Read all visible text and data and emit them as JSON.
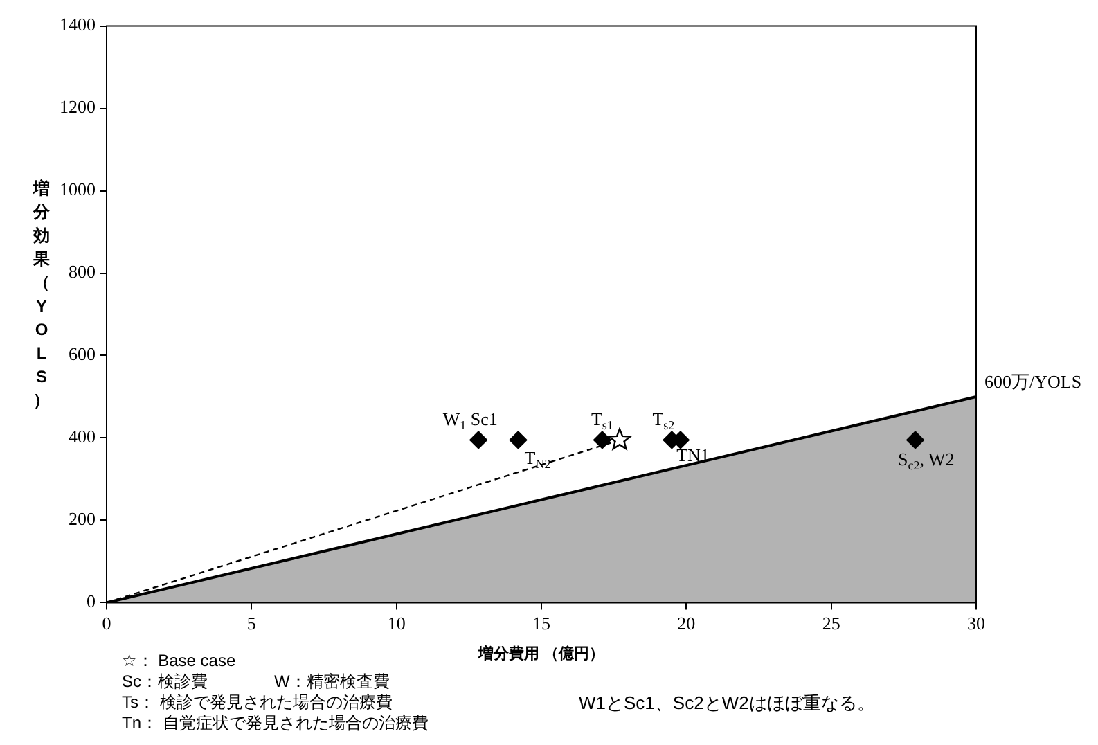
{
  "chart_data": {
    "type": "scatter",
    "xlabel": "増分費用 （億円）",
    "ylabel": "増分効果（YOLS）",
    "xlim": [
      0,
      30
    ],
    "xticks": [
      0,
      5,
      10,
      15,
      20,
      25,
      30
    ],
    "ylim": [
      0,
      1400
    ],
    "yticks": [
      0,
      200,
      400,
      600,
      800,
      1000,
      1200,
      1400
    ],
    "grid": false,
    "series": [
      {
        "type": "area",
        "color": "#b3b3b3",
        "x": [
          0,
          30
        ],
        "values": [
          0,
          500
        ]
      },
      {
        "type": "line",
        "color": "#000000",
        "line_style": "dashed",
        "marker": "none",
        "x": [
          0,
          17.7
        ],
        "values": [
          0,
          395
        ]
      },
      {
        "type": "scatter",
        "color": "#000000",
        "marker": "diamond",
        "x": [
          12.83,
          14.2,
          17.1,
          19.5,
          19.8,
          27.9
        ],
        "values": [
          395,
          395,
          395,
          395,
          395,
          395
        ]
      },
      {
        "type": "scatter",
        "color": "#000000",
        "marker": "star",
        "x": [
          17.7
        ],
        "values": [
          395
        ]
      }
    ],
    "annotations": [
      {
        "text": "W$_{1}$ Sc1",
        "x": 12.83,
        "y": 395
      },
      {
        "text": "T$_{N2}$",
        "x": 14.2,
        "y": 395
      },
      {
        "text": "T$_{s1}$",
        "x": 17.1,
        "y": 395
      },
      {
        "text": "T$_{s2}$",
        "x": 19.5,
        "y": 395
      },
      {
        "text": "TN1",
        "x": 19.8,
        "y": 395
      },
      {
        "text": "S$_{c2}$, W2",
        "x": 27.9,
        "y": 395
      },
      {
        "text": "600万/YOLS",
        "x": 30,
        "y": 500
      },
      "☆： Base case",
      "Sc：検診費　　　　W：精密検査費",
      "Ts： 検診で発見された場合の治療費",
      "Tn： 自覚症状で発見された場合の治療費",
      "W1とSc1、Sc2とW2はほぼ重なる。"
    ]
  }
}
